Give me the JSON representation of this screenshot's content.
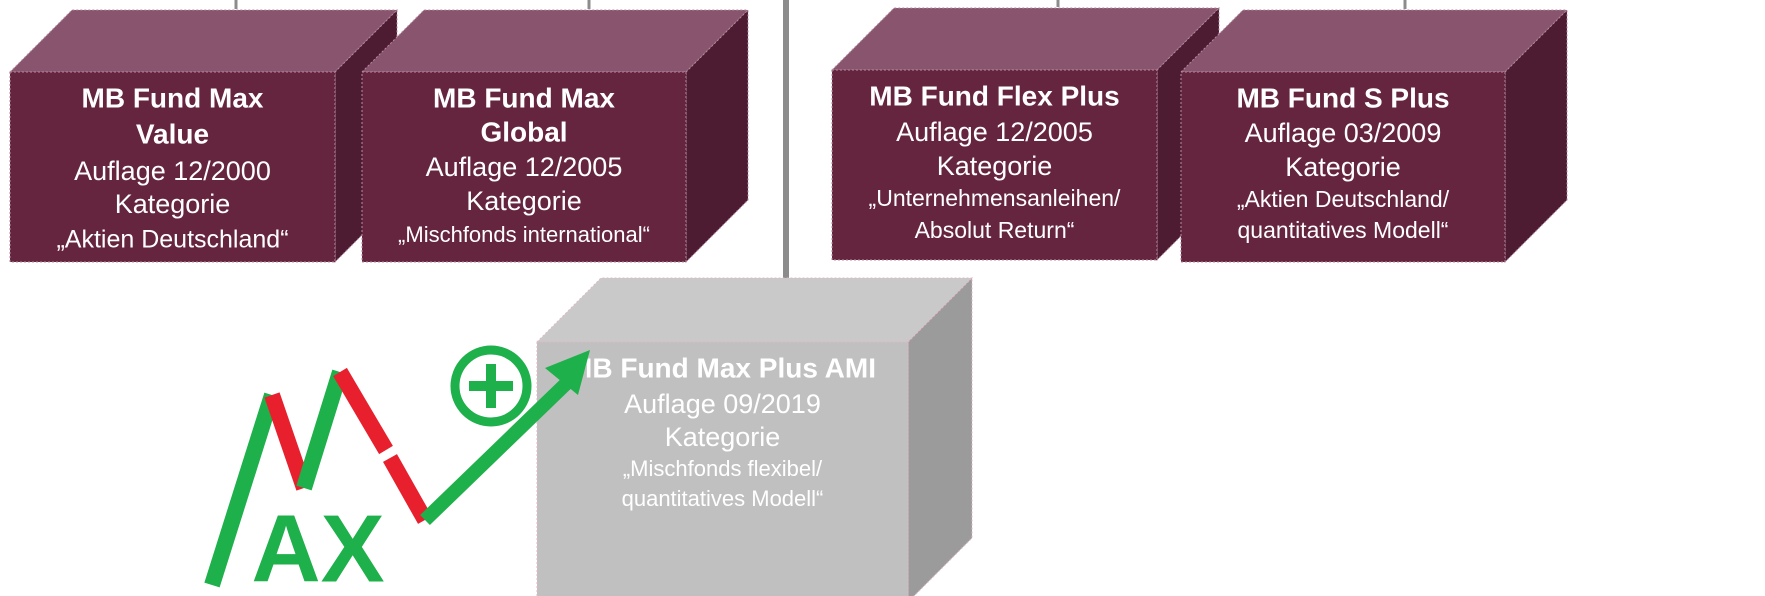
{
  "boxes": [
    {
      "title_lines": [
        "MB Fund Max",
        "Value"
      ],
      "lines": [
        "Auflage 12/2000",
        "Kategorie",
        "„Aktien Deutschland“"
      ]
    },
    {
      "title_lines": [
        "MB Fund Max",
        "Global"
      ],
      "lines": [
        "Auflage 12/2005",
        "Kategorie",
        "„Mischfonds international“"
      ]
    },
    {
      "title_lines": [
        "MB Fund Flex Plus"
      ],
      "lines": [
        "Auflage 12/2005",
        "Kategorie",
        "„Unternehmensanleihen/",
        "Absolut Return“"
      ]
    },
    {
      "title_lines": [
        "MB Fund S Plus"
      ],
      "lines": [
        "Auflage 03/2009",
        "Kategorie",
        "„Aktien Deutschland/",
        "quantitatives Modell“"
      ]
    },
    {
      "title_lines": [
        "MB Fund Max Plus AMI"
      ],
      "lines": [
        "Auflage 09/2019",
        "Kategorie",
        "„Mischfonds flexibel/",
        "quantitatives Modell“"
      ]
    }
  ],
  "logo": {
    "text": "AX"
  }
}
